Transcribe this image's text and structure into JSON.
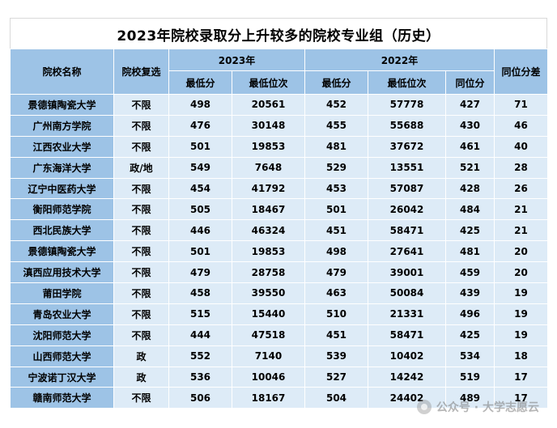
{
  "title": "2023年院校录取分上升较多的院校专业组（历史）",
  "headers": {
    "school": "院校名称",
    "filter": "院校复选",
    "year2023": "2023年",
    "year2022": "2022年",
    "min_score": "最低分",
    "min_rank": "最低位次",
    "equiv_score": "同位分",
    "diff": "同位分差"
  },
  "rows": [
    {
      "school": "景德镇陶瓷大学",
      "filter": "不限",
      "s23": "498",
      "r23": "20561",
      "s22": "452",
      "r22": "57778",
      "eq": "427",
      "diff": "71"
    },
    {
      "school": "广州南方学院",
      "filter": "不限",
      "s23": "476",
      "r23": "30148",
      "s22": "455",
      "r22": "55688",
      "eq": "430",
      "diff": "46"
    },
    {
      "school": "江西农业大学",
      "filter": "不限",
      "s23": "501",
      "r23": "19853",
      "s22": "481",
      "r22": "37672",
      "eq": "461",
      "diff": "40"
    },
    {
      "school": "广东海洋大学",
      "filter": "政/地",
      "s23": "549",
      "r23": "7648",
      "s22": "529",
      "r22": "13551",
      "eq": "521",
      "diff": "28"
    },
    {
      "school": "辽宁中医药大学",
      "filter": "不限",
      "s23": "454",
      "r23": "41792",
      "s22": "453",
      "r22": "57087",
      "eq": "428",
      "diff": "26"
    },
    {
      "school": "衡阳师范学院",
      "filter": "不限",
      "s23": "505",
      "r23": "18467",
      "s22": "501",
      "r22": "26042",
      "eq": "484",
      "diff": "21"
    },
    {
      "school": "西北民族大学",
      "filter": "不限",
      "s23": "446",
      "r23": "46324",
      "s22": "451",
      "r22": "58471",
      "eq": "425",
      "diff": "21"
    },
    {
      "school": "景德镇陶瓷大学",
      "filter": "不限",
      "s23": "501",
      "r23": "19853",
      "s22": "498",
      "r22": "27641",
      "eq": "481",
      "diff": "20"
    },
    {
      "school": "滇西应用技术大学",
      "filter": "不限",
      "s23": "479",
      "r23": "28758",
      "s22": "479",
      "r22": "39001",
      "eq": "459",
      "diff": "20"
    },
    {
      "school": "莆田学院",
      "filter": "不限",
      "s23": "458",
      "r23": "39550",
      "s22": "463",
      "r22": "50084",
      "eq": "439",
      "diff": "19"
    },
    {
      "school": "青岛农业大学",
      "filter": "不限",
      "s23": "515",
      "r23": "15440",
      "s22": "510",
      "r22": "21331",
      "eq": "496",
      "diff": "19"
    },
    {
      "school": "沈阳师范大学",
      "filter": "不限",
      "s23": "444",
      "r23": "47518",
      "s22": "451",
      "r22": "58471",
      "eq": "425",
      "diff": "19"
    },
    {
      "school": "山西师范大学",
      "filter": "政",
      "s23": "552",
      "r23": "7140",
      "s22": "539",
      "r22": "10402",
      "eq": "534",
      "diff": "18"
    },
    {
      "school": "宁波诺丁汉大学",
      "filter": "政",
      "s23": "536",
      "r23": "10046",
      "s22": "527",
      "r22": "14242",
      "eq": "519",
      "diff": "17"
    },
    {
      "school": "赣南师范大学",
      "filter": "不限",
      "s23": "506",
      "r23": "18167",
      "s22": "504",
      "r22": "24402",
      "eq": "489",
      "diff": "17"
    }
  ],
  "watermark": "公众号 · 大学志愿云"
}
